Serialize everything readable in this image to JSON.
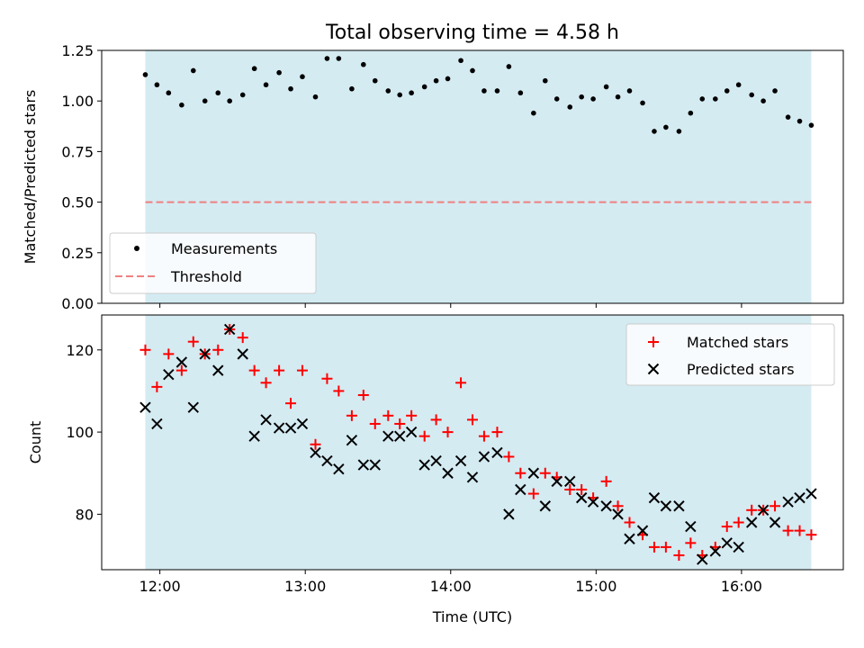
{
  "chart_data": [
    {
      "type": "scatter",
      "title": "Total observing time = 4.58 h",
      "xlabel": "",
      "ylabel": "Matched/Predicted stars",
      "ylim": [
        0,
        1.25
      ],
      "yticks": [
        "0.00",
        "0.25",
        "0.50",
        "0.75",
        "1.00",
        "1.25"
      ],
      "xlim_hours": [
        11.6,
        16.7
      ],
      "shaded_span_hours": [
        11.9,
        16.48
      ],
      "shade_color": "#add8e6",
      "legend": {
        "placement": "lower-left"
      },
      "series": [
        {
          "name": "Measurements",
          "marker": "dot",
          "color": "#000000",
          "x_hours": [
            11.9,
            11.98,
            12.06,
            12.15,
            12.23,
            12.31,
            12.4,
            12.48,
            12.57,
            12.65,
            12.73,
            12.82,
            12.9,
            12.98,
            13.07,
            13.15,
            13.23,
            13.32,
            13.4,
            13.48,
            13.57,
            13.65,
            13.73,
            13.82,
            13.9,
            13.98,
            14.07,
            14.15,
            14.23,
            14.32,
            14.4,
            14.48,
            14.57,
            14.65,
            14.73,
            14.82,
            14.9,
            14.98,
            15.07,
            15.15,
            15.23,
            15.32,
            15.4,
            15.48,
            15.57,
            15.65,
            15.73,
            15.82,
            15.9,
            15.98,
            16.07,
            16.15,
            16.23,
            16.32,
            16.4,
            16.48
          ],
          "y": [
            1.13,
            1.08,
            1.04,
            0.98,
            1.15,
            1.0,
            1.04,
            1.0,
            1.03,
            1.16,
            1.08,
            1.14,
            1.06,
            1.12,
            1.02,
            1.21,
            1.21,
            1.06,
            1.18,
            1.1,
            1.05,
            1.03,
            1.04,
            1.07,
            1.1,
            1.11,
            1.2,
            1.15,
            1.05,
            1.05,
            1.17,
            1.04,
            0.94,
            1.1,
            1.01,
            0.97,
            1.02,
            1.01,
            1.07,
            1.02,
            1.05,
            0.99,
            0.85,
            0.87,
            0.85,
            0.94,
            1.01,
            1.01,
            1.05,
            1.08,
            1.03,
            1.0,
            1.05,
            0.92,
            0.9,
            0.88
          ]
        },
        {
          "name": "Threshold",
          "marker": "dashed-line",
          "color": "#f08080",
          "y_const": 0.5
        }
      ]
    },
    {
      "type": "scatter",
      "title": "",
      "xlabel": "Time (UTC)",
      "ylabel": "Count",
      "ylim": [
        66.5,
        128.5
      ],
      "yticks": [
        "80",
        "100",
        "120"
      ],
      "xlim_hours": [
        11.6,
        16.7
      ],
      "xticks_hours": [
        12,
        13,
        14,
        15,
        16
      ],
      "xtick_labels": [
        "12:00",
        "13:00",
        "14:00",
        "15:00",
        "16:00"
      ],
      "shaded_span_hours": [
        11.9,
        16.48
      ],
      "shade_color": "#add8e6",
      "legend": {
        "placement": "top-right"
      },
      "series": [
        {
          "name": "Matched stars",
          "marker": "plus",
          "color": "#ff0000",
          "x_hours": [
            11.9,
            11.98,
            12.06,
            12.15,
            12.23,
            12.31,
            12.4,
            12.48,
            12.57,
            12.65,
            12.73,
            12.82,
            12.9,
            12.98,
            13.07,
            13.15,
            13.23,
            13.32,
            13.4,
            13.48,
            13.57,
            13.65,
            13.73,
            13.82,
            13.9,
            13.98,
            14.07,
            14.15,
            14.23,
            14.32,
            14.4,
            14.48,
            14.57,
            14.65,
            14.73,
            14.82,
            14.9,
            14.98,
            15.07,
            15.15,
            15.23,
            15.32,
            15.4,
            15.48,
            15.57,
            15.65,
            15.73,
            15.82,
            15.9,
            15.98,
            16.07,
            16.15,
            16.23,
            16.32,
            16.4,
            16.48
          ],
          "y": [
            120,
            111,
            119,
            115,
            122,
            119,
            120,
            125,
            123,
            115,
            112,
            115,
            107,
            115,
            97,
            113,
            110,
            104,
            109,
            102,
            104,
            102,
            104,
            99,
            103,
            100,
            112,
            103,
            99,
            100,
            94,
            90,
            85,
            90,
            89,
            86,
            86,
            84,
            88,
            82,
            78,
            75,
            72,
            72,
            70,
            73,
            70,
            72,
            77,
            78,
            81,
            81,
            82,
            76,
            76,
            75
          ]
        },
        {
          "name": "Predicted stars",
          "marker": "x",
          "color": "#000000",
          "x_hours": [
            11.9,
            11.98,
            12.06,
            12.15,
            12.23,
            12.31,
            12.4,
            12.48,
            12.57,
            12.65,
            12.73,
            12.82,
            12.9,
            12.98,
            13.07,
            13.15,
            13.23,
            13.32,
            13.4,
            13.48,
            13.57,
            13.65,
            13.73,
            13.82,
            13.9,
            13.98,
            14.07,
            14.15,
            14.23,
            14.32,
            14.4,
            14.48,
            14.57,
            14.65,
            14.73,
            14.82,
            14.9,
            14.98,
            15.07,
            15.15,
            15.23,
            15.32,
            15.4,
            15.48,
            15.57,
            15.65,
            15.73,
            15.82,
            15.9,
            15.98,
            16.07,
            16.15,
            16.23,
            16.32,
            16.4,
            16.48
          ],
          "y": [
            106,
            102,
            114,
            117,
            106,
            119,
            115,
            125,
            119,
            99,
            103,
            101,
            101,
            102,
            95,
            93,
            91,
            98,
            92,
            92,
            99,
            99,
            100,
            92,
            93,
            90,
            93,
            89,
            94,
            95,
            80,
            86,
            90,
            82,
            88,
            88,
            84,
            83,
            82,
            80,
            74,
            76,
            84,
            82,
            82,
            77,
            69,
            71,
            73,
            72,
            78,
            81,
            78,
            83,
            84,
            85
          ]
        }
      ]
    }
  ]
}
